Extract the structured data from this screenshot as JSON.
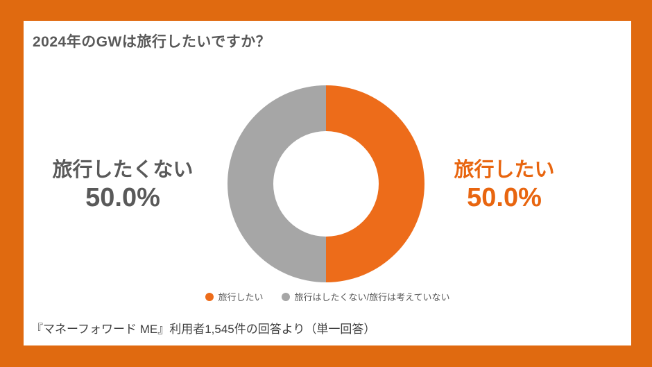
{
  "colors": {
    "frame_orange": "#E06A10",
    "accent_orange": "#E8650F",
    "slice_orange": "#ED6C1A",
    "slice_gray": "#A6A6A6",
    "text_dark": "#595959",
    "footer_text": "#404040",
    "background": "#FFFFFF"
  },
  "header": {
    "title": "2024年のGWは旅行したいですか？"
  },
  "chart_data": {
    "type": "pie",
    "subtype": "donut",
    "title": "2024年のGWは旅行したいですか？",
    "categories": [
      "旅行したい",
      "旅行はしたくない/旅行は考えていない"
    ],
    "values": [
      50.0,
      50.0
    ],
    "unit": "%",
    "data_labels": [
      "50.0%",
      "50.0%"
    ],
    "colors": [
      "#ED6C1A",
      "#A6A6A6"
    ],
    "start_angle_deg": 0,
    "direction": "clockwise",
    "inner_radius_ratio": 0.53,
    "legend_position": "bottom"
  },
  "callouts": {
    "right": {
      "label": "旅行したい",
      "value": "50.0%"
    },
    "left": {
      "label": "旅行したくない",
      "value": "50.0%"
    }
  },
  "footer": {
    "source": "『マネーフォワード ME』利用者1,545件の回答より（単一回答）"
  }
}
